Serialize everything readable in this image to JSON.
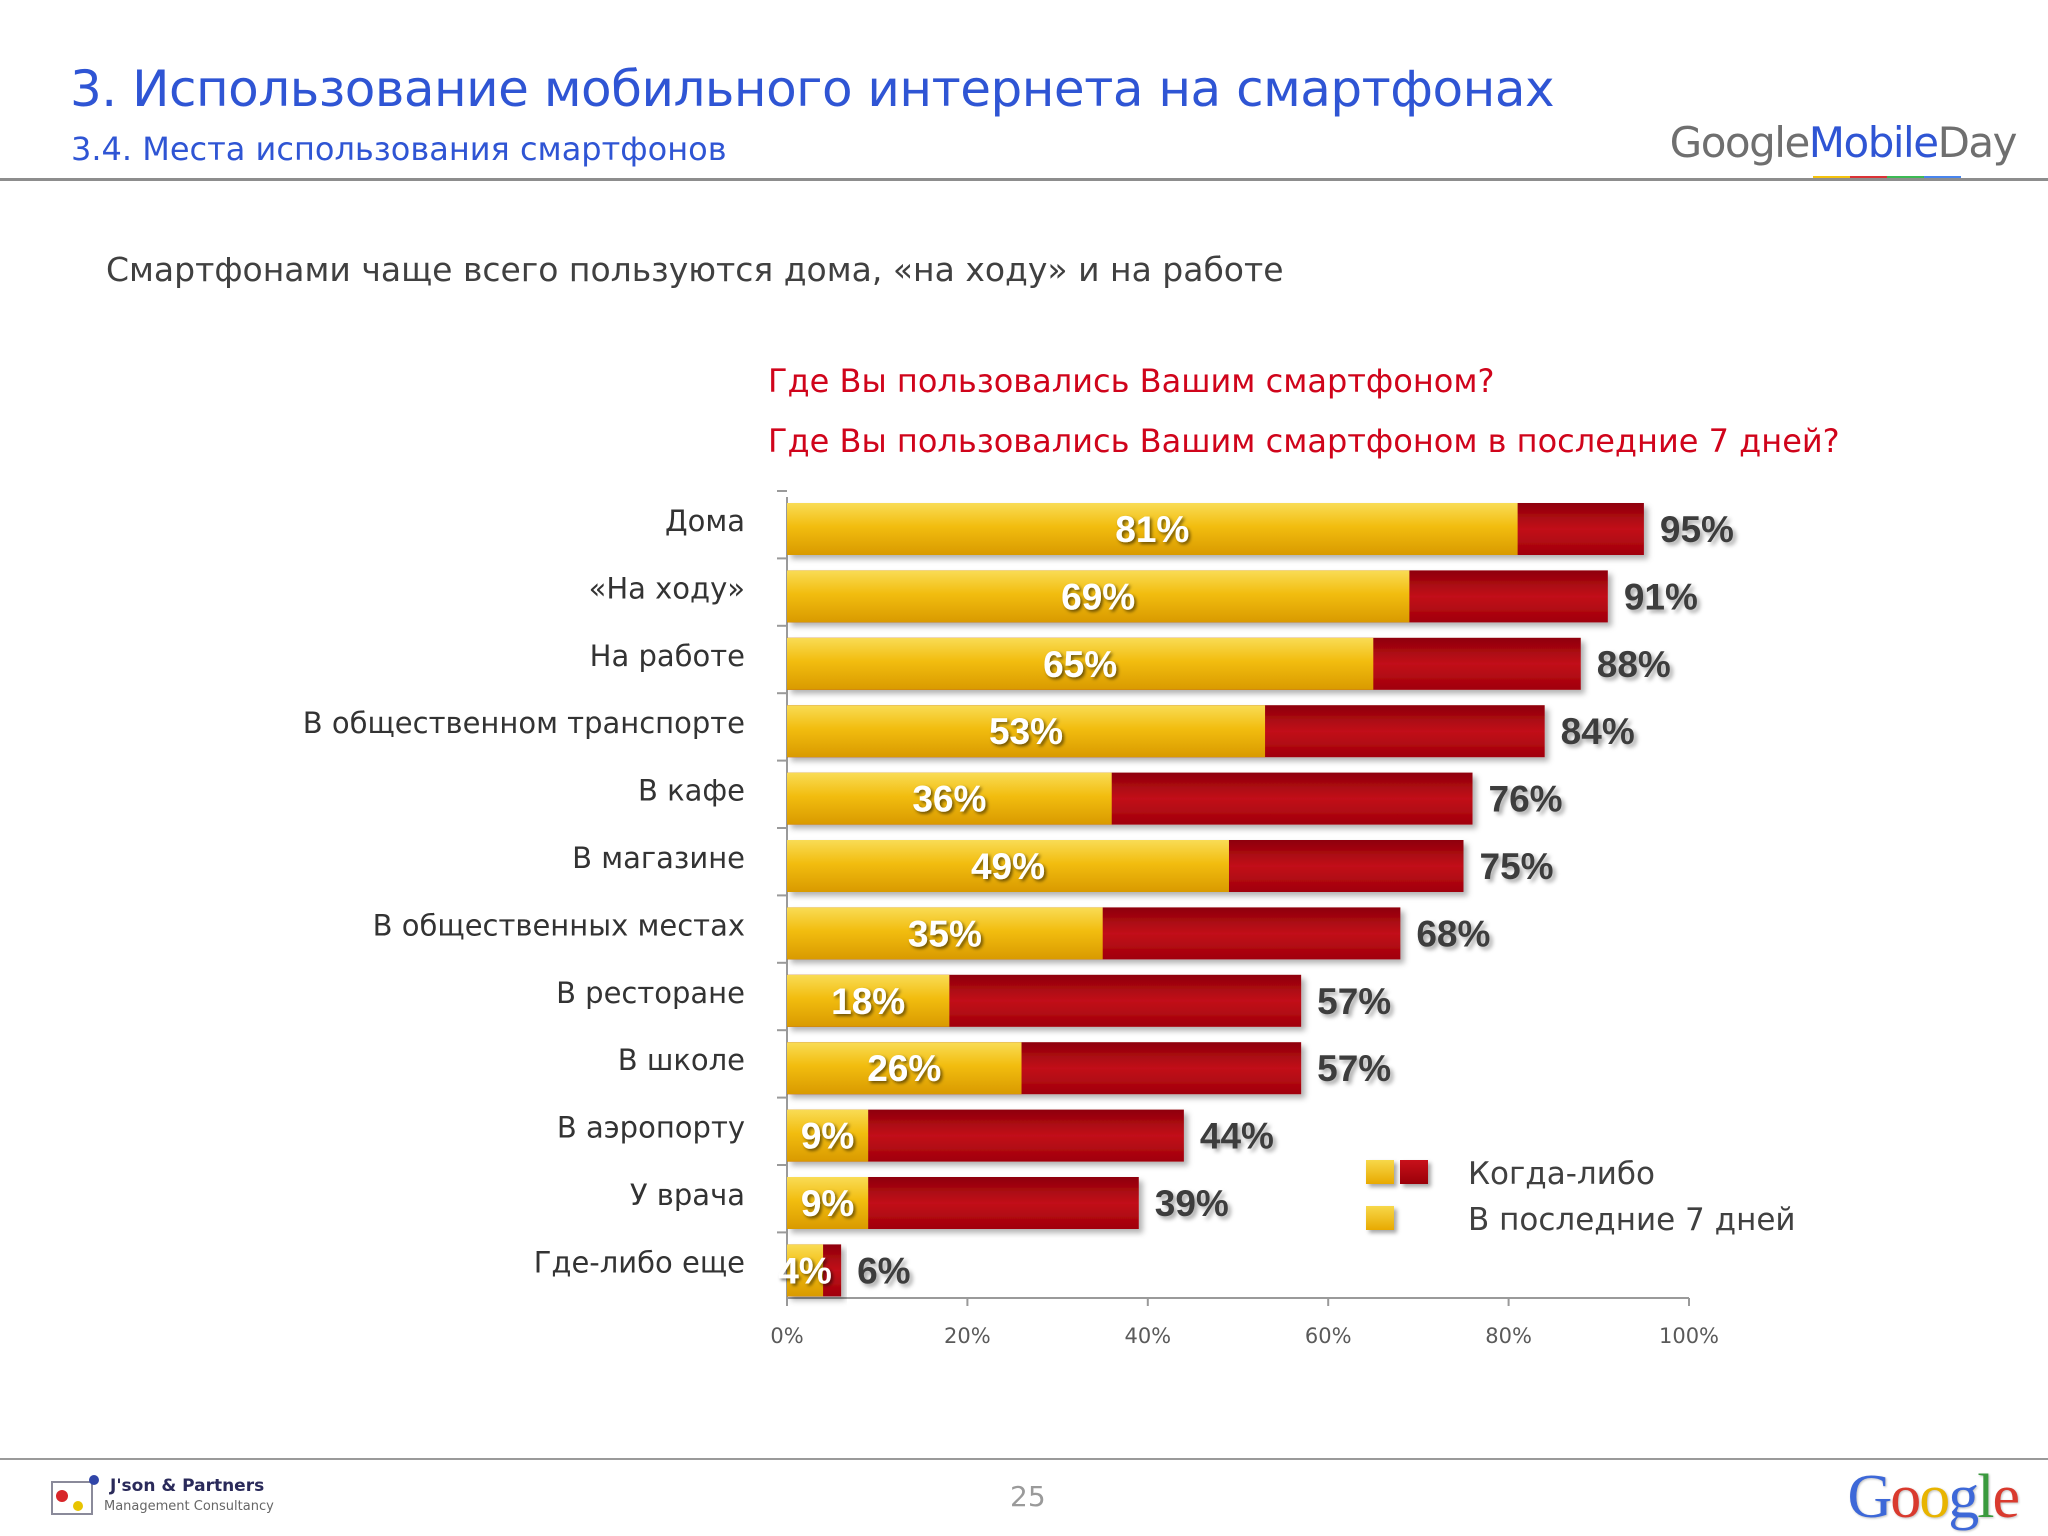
{
  "header": {
    "title": "3. Использование мобильного интернета на смартфонах",
    "subtitle": "3.4. Места использования смартфонов",
    "brand": {
      "google": "Google",
      "mobile": "Mobile",
      "day": "Day"
    }
  },
  "headline": "Смартфонами чаще всего пользуются дома, «на ходу» и на работе",
  "questions": [
    "Где Вы пользовались Вашим смартфоном?",
    "Где Вы пользовались Вашим смартфоном в последние 7 дней?"
  ],
  "legend": {
    "ever": "Когда-либо",
    "last7": "В последние 7 дней"
  },
  "chart_data": {
    "type": "bar",
    "orientation": "horizontal",
    "categories": [
      "Дома",
      "«На ходу»",
      "На работе",
      "В общественном транспорте",
      "В кафе",
      "В магазине",
      "В общественных местах",
      "В ресторане",
      "В школе",
      "В аэропорту",
      "У врача",
      "Где-либо еще"
    ],
    "series": [
      {
        "name": "Когда-либо",
        "values": [
          95,
          91,
          88,
          84,
          76,
          75,
          68,
          57,
          57,
          44,
          39,
          6
        ],
        "labels": [
          "95%",
          "91%",
          "88%",
          "84%",
          "76%",
          "75%",
          "68%",
          "57%",
          "57%",
          "44%",
          "39%",
          "6%"
        ],
        "color": "#b20a12"
      },
      {
        "name": "В последние 7 дней",
        "values": [
          81,
          69,
          65,
          53,
          36,
          49,
          35,
          18,
          26,
          9,
          9,
          4
        ],
        "labels": [
          "81%",
          "69%",
          "65%",
          "53%",
          "36%",
          "49%",
          "35%",
          "18%",
          "26%",
          "9%",
          "9%",
          "4%"
        ],
        "color": "#f2bd0f"
      }
    ],
    "xticks": [
      "0%",
      "20%",
      "40%",
      "60%",
      "80%",
      "100%"
    ],
    "xlim": [
      0,
      100
    ],
    "legend_position": "bottom-right",
    "grid": false
  },
  "footer": {
    "company": "J'son & Partners",
    "company_sub": "Management Consultancy",
    "page": "25",
    "google_letters": [
      "G",
      "o",
      "o",
      "g",
      "l",
      "e"
    ]
  }
}
